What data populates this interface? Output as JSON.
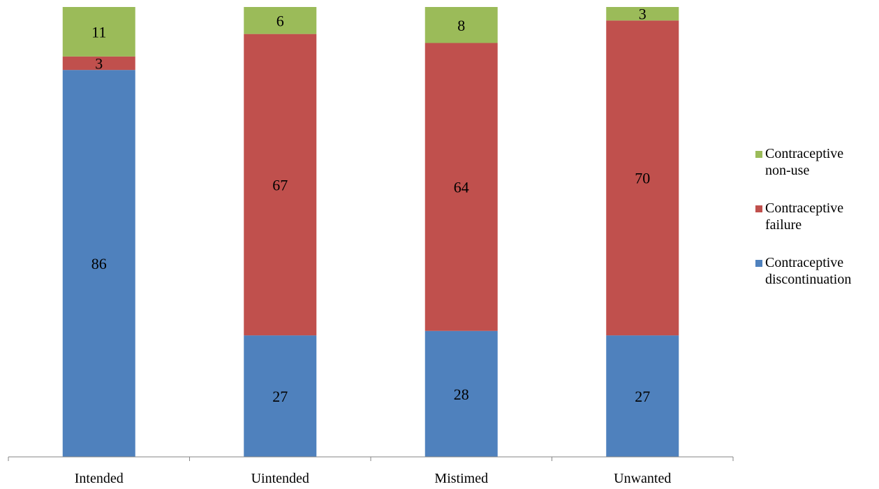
{
  "chart_data": {
    "type": "bar",
    "stacked": true,
    "percent_stacked": true,
    "title": "",
    "xlabel": "",
    "ylabel": "",
    "ylim": [
      0,
      100
    ],
    "grid": false,
    "legend_position": "right",
    "categories": [
      "Intended",
      "Uintended",
      "Mistimed",
      "Unwanted"
    ],
    "series": [
      {
        "name": "Contraceptive discontinuation",
        "color": "#4f81bd",
        "values": [
          86,
          27,
          28,
          27
        ]
      },
      {
        "name": "Contraceptive failure",
        "color": "#c0504d",
        "values": [
          3,
          67,
          64,
          70
        ]
      },
      {
        "name": "Contraceptive non-use",
        "color": "#9bbb59",
        "values": [
          11,
          6,
          8,
          3
        ]
      }
    ],
    "legend": [
      {
        "name": "Contraceptive non-use",
        "lines": [
          "Contraceptive",
          "non-use"
        ],
        "color": "#9bbb59"
      },
      {
        "name": "Contraceptive failure",
        "lines": [
          "Contraceptive",
          "failure"
        ],
        "color": "#c0504d"
      },
      {
        "name": "Contraceptive discontinuation",
        "lines": [
          "Contraceptive",
          "discontinuation"
        ],
        "color": "#4f81bd"
      }
    ],
    "axis_color": "#868686"
  }
}
